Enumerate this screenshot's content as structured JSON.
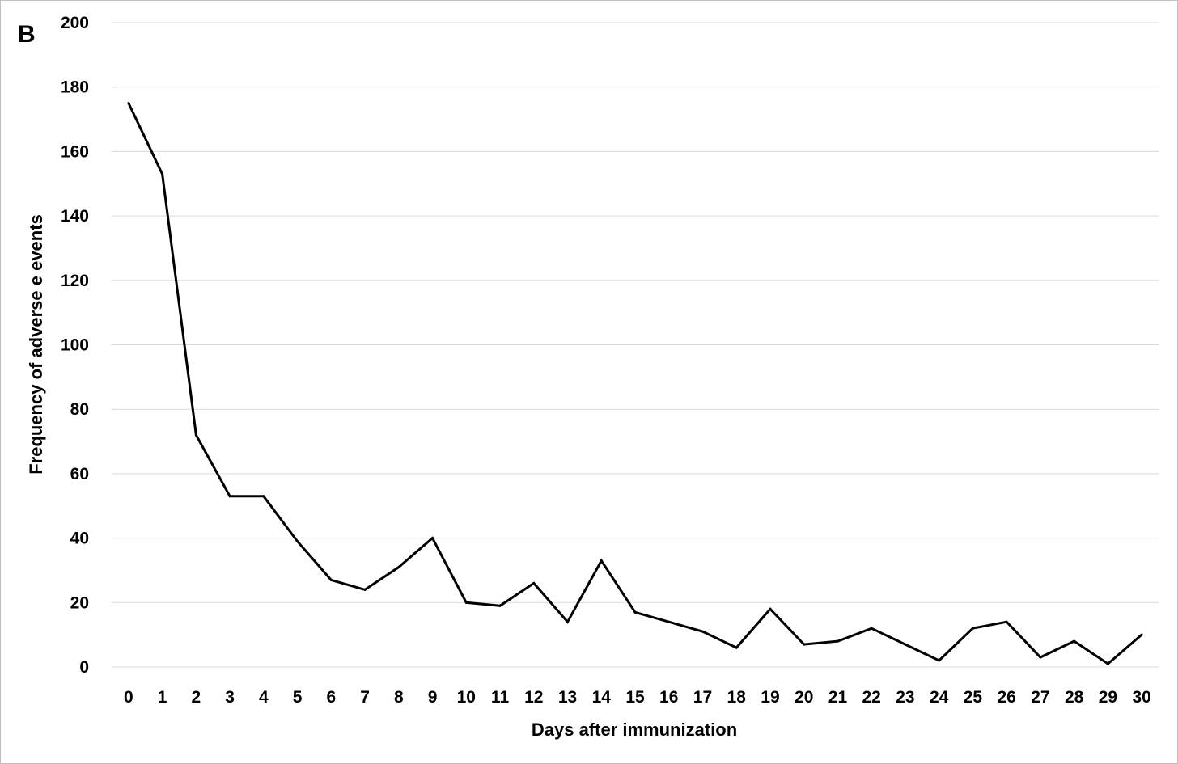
{
  "chart_data": {
    "type": "line",
    "panel_label": "B",
    "title": "",
    "xlabel": "Days after immunization",
    "ylabel": "Frequency of adverse e events",
    "x": [
      0,
      1,
      2,
      3,
      4,
      5,
      6,
      7,
      8,
      9,
      10,
      11,
      12,
      13,
      14,
      15,
      16,
      17,
      18,
      19,
      20,
      21,
      22,
      23,
      24,
      25,
      26,
      27,
      28,
      29,
      30
    ],
    "x_tick_labels": [
      "0",
      "1",
      "2",
      "3",
      "4",
      "5",
      "6",
      "7",
      "8",
      "9",
      "10",
      "11",
      "12",
      "13",
      "14",
      "15",
      "16",
      "17",
      "18",
      "19",
      "20",
      "21",
      "22",
      "23",
      "24",
      "25",
      "26",
      "27",
      "28",
      "29",
      "30"
    ],
    "y_tick_labels": [
      "0",
      "20",
      "40",
      "60",
      "80",
      "100",
      "120",
      "140",
      "160",
      "180",
      "200"
    ],
    "y_ticks": [
      0,
      20,
      40,
      60,
      80,
      100,
      120,
      140,
      160,
      180,
      200
    ],
    "ylim": [
      0,
      200
    ],
    "grid": "horizontal",
    "legend": "none",
    "series": [
      {
        "values": [
          175,
          153,
          72,
          53,
          53,
          39,
          27,
          24,
          31,
          40,
          20,
          19,
          26,
          14,
          33,
          17,
          14,
          11,
          6,
          18,
          7,
          8,
          12,
          7,
          2,
          12,
          14,
          3,
          8,
          1,
          10
        ],
        "color": "#000000"
      }
    ]
  }
}
